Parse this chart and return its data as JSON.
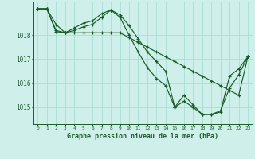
{
  "title": "Graphe pression niveau de la mer (hPa)",
  "bg_color": "#cff0ea",
  "grid_color": "#a8ddd7",
  "line_color": "#1a5c28",
  "xlim": [
    -0.5,
    23.5
  ],
  "ylim": [
    1014.3,
    1019.4
  ],
  "yticks": [
    1015,
    1016,
    1017,
    1018
  ],
  "xticks": [
    0,
    1,
    2,
    3,
    4,
    5,
    6,
    7,
    8,
    9,
    10,
    11,
    12,
    13,
    14,
    15,
    16,
    17,
    18,
    19,
    20,
    21,
    22,
    23
  ],
  "series1": [
    1019.1,
    1019.1,
    1018.2,
    1018.1,
    1018.3,
    1018.5,
    1018.6,
    1018.9,
    1019.05,
    1018.85,
    1018.4,
    1017.85,
    1017.3,
    1016.9,
    1016.5,
    1015.0,
    1015.5,
    1015.1,
    1014.7,
    1014.7,
    1014.8,
    1016.3,
    1016.6,
    1017.1
  ],
  "series2": [
    1019.1,
    1019.1,
    1018.15,
    1018.1,
    1018.2,
    1018.35,
    1018.45,
    1018.75,
    1019.05,
    1018.75,
    1018.0,
    1017.3,
    1016.65,
    1016.2,
    1015.9,
    1015.0,
    1015.25,
    1015.0,
    1014.7,
    1014.7,
    1014.85,
    1015.8,
    1016.35,
    1017.1
  ],
  "series3": [
    1019.1,
    1019.1,
    1018.45,
    1018.1,
    1018.1,
    1018.1,
    1018.1,
    1018.1,
    1018.1,
    1018.1,
    1017.9,
    1017.7,
    1017.5,
    1017.3,
    1017.1,
    1016.9,
    1016.7,
    1016.5,
    1016.3,
    1016.1,
    1015.9,
    1015.7,
    1015.5,
    1017.1
  ]
}
